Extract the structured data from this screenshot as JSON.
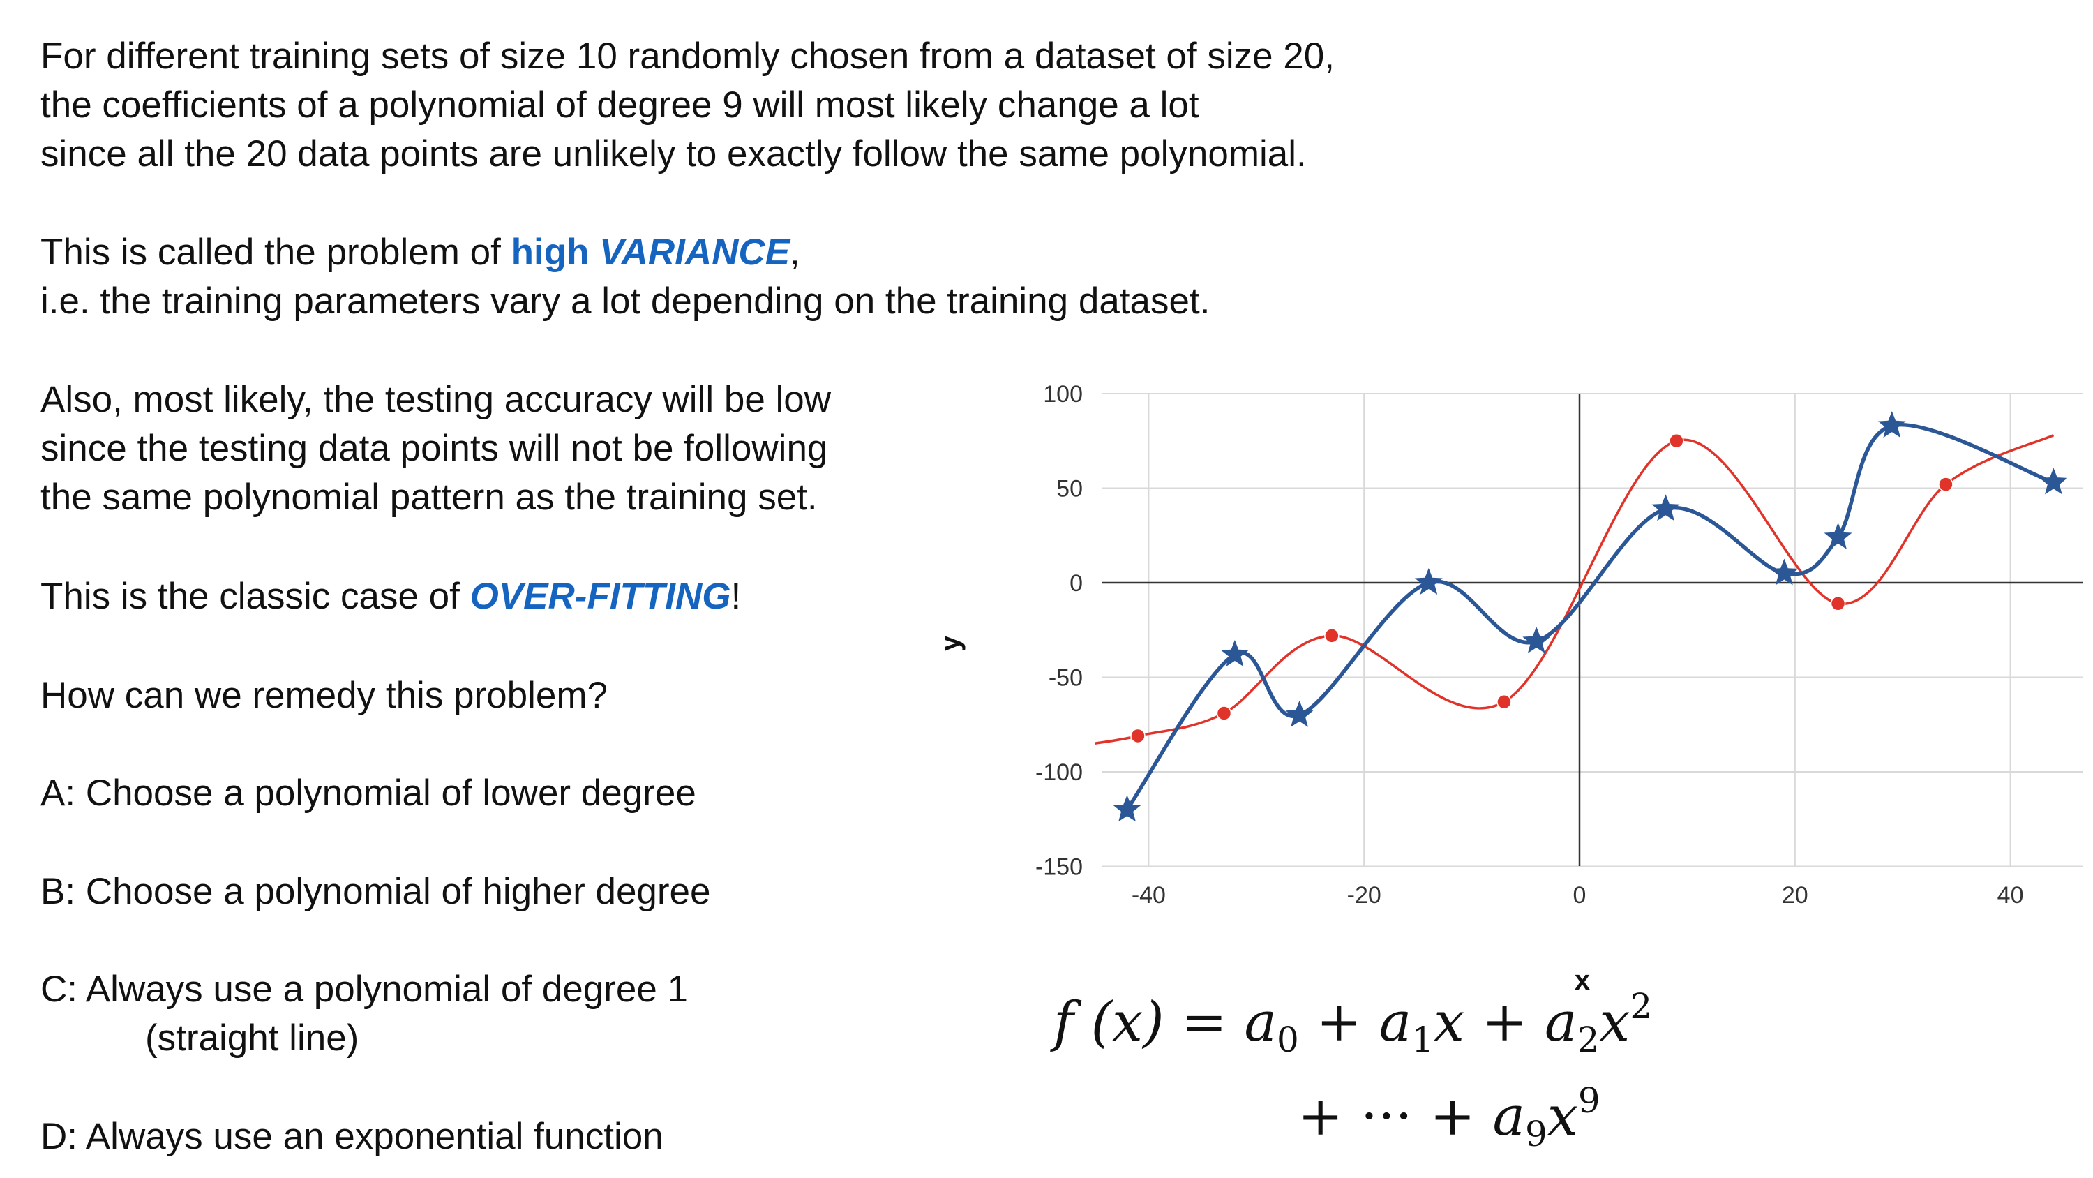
{
  "text": {
    "intro_lines": [
      "For different training sets of size 10 randomly chosen from a dataset of size 20,",
      "the coefficients of a polynomial of degree 9 will most likely change a lot",
      "since all the 20 data points are unlikely to exactly follow the same polynomial."
    ],
    "variance_prefix": "This is called the problem of ",
    "variance_high": "high ",
    "variance_word": "VARIANCE",
    "variance_comma": ",",
    "variance_explain": "i.e. the training parameters vary a lot depending on the training dataset.",
    "also_lines": [
      "Also, most likely, the testing accuracy will be low",
      "since the testing data points will not be following",
      "the same polynomial pattern as the training set."
    ],
    "overfit_prefix": "This is the classic case of ",
    "overfit_word": "OVER-FITTING",
    "overfit_suffix": "!",
    "question": "How can we remedy this problem?",
    "option_a": "A: Choose a polynomial of lower degree",
    "option_b": "B: Choose a polynomial of higher degree",
    "option_c": "C: Always use a polynomial of degree 1",
    "option_c_note": "(straight line)",
    "option_d": "D: Always use an exponential function"
  },
  "formula": {
    "line1_lhs": "f",
    "line1_x": "(x)",
    "line1_eq": "=",
    "a0": "a",
    "sub0": "0",
    "plus": "+",
    "a1": "a",
    "sub1": "1",
    "x1": "x",
    "a2": "a",
    "sub2": "2",
    "x2": "x",
    "sup2": "2",
    "line2_dots": "+ ··· +",
    "a9": "a",
    "sub9": "9",
    "x9": "x",
    "sup9": "9"
  },
  "colors": {
    "accent": "#1565c0",
    "blue_series": "#2b5797",
    "red_series": "#e0342b",
    "grid": "#d9d9d9",
    "axis": "#333333"
  },
  "chart_data": {
    "type": "line",
    "xlabel": "x",
    "ylabel": "y",
    "xlim": [
      -45,
      46
    ],
    "ylim": [
      -150,
      100
    ],
    "xticks": [
      -40,
      -20,
      0,
      20,
      40
    ],
    "yticks": [
      100,
      50,
      0,
      -50,
      -100,
      -150
    ],
    "grid": true,
    "series": [
      {
        "name": "training points (stars)",
        "color": "#2b5797",
        "marker": "star",
        "x": [
          -42,
          -32,
          -26,
          -14,
          -4,
          8,
          19,
          24,
          29,
          44
        ],
        "y": [
          -120,
          -38,
          -70,
          0,
          -31,
          39,
          5,
          24,
          83,
          53
        ]
      },
      {
        "name": "testing points (dots)",
        "color": "#e0342b",
        "marker": "circle",
        "x": [
          -41,
          -33,
          -23,
          -7,
          9,
          24,
          34
        ],
        "y": [
          -81,
          -69,
          -28,
          -63,
          75,
          -11,
          52
        ]
      }
    ],
    "red_curve_end": {
      "x": 44,
      "y": 78
    }
  }
}
